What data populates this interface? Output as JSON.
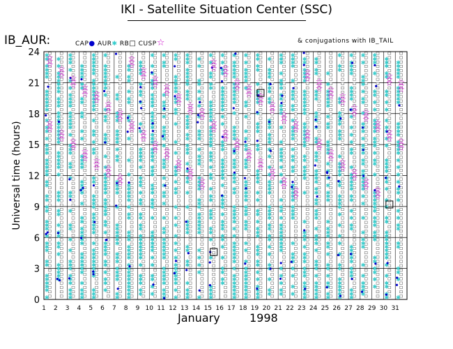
{
  "header": {
    "title": "IKI - Satellite Situation Center (SSC)",
    "satellite": "IB_AUR:",
    "conjugation_note": "& conjugations with IB_TAIL"
  },
  "legend": {
    "items": [
      {
        "label": "CAP",
        "symbol": "dot",
        "color": "#0000cc"
      },
      {
        "label": "AUR",
        "symbol": "asterisk",
        "color": "#33cccc"
      },
      {
        "label": "RB",
        "symbol": "square",
        "color": "#000000"
      },
      {
        "label": "CUSP",
        "symbol": "star",
        "color": "#cc00cc"
      }
    ]
  },
  "chart_data": {
    "type": "scatter",
    "title": "IKI - Satellite Situation Center (SSC)",
    "xlabel": "January 1998",
    "x_month": "January",
    "x_year": "1998",
    "ylabel": "Universal time (hours)",
    "xlim": [
      1,
      32
    ],
    "ylim": [
      0,
      24
    ],
    "x_ticks": [
      "1",
      "2",
      "3",
      "4",
      "5",
      "6",
      "7",
      "8",
      "9",
      "10",
      "11",
      "12",
      "13",
      "14",
      "15",
      "16",
      "17",
      "18",
      "19",
      "20",
      "21",
      "22",
      "23",
      "24",
      "25",
      "26",
      "27",
      "28",
      "29",
      "30",
      "31"
    ],
    "y_ticks": [
      0,
      3,
      6,
      9,
      12,
      15,
      18,
      21,
      24
    ],
    "grid": true,
    "series": [
      {
        "name": "CUSP",
        "color": "#cc00cc",
        "marker": "star",
        "points": [
          [
            2,
            23.1
          ],
          [
            2,
            16.8
          ],
          [
            3,
            22.0
          ],
          [
            3,
            15.9
          ],
          [
            4,
            21.1
          ],
          [
            4,
            15.0
          ],
          [
            5,
            20.2
          ],
          [
            5,
            14.0
          ],
          [
            6,
            19.6
          ],
          [
            6,
            13.1
          ],
          [
            7,
            18.6
          ],
          [
            7,
            12.4
          ],
          [
            8,
            17.8
          ],
          [
            8,
            11.6
          ],
          [
            9,
            23.0
          ],
          [
            9,
            16.8
          ],
          [
            10,
            21.9
          ],
          [
            10,
            15.9
          ],
          [
            11,
            21.1
          ],
          [
            11,
            14.8
          ],
          [
            12,
            20.3
          ],
          [
            12,
            14.1
          ],
          [
            13,
            19.4
          ],
          [
            13,
            13.0
          ],
          [
            14,
            18.5
          ],
          [
            14,
            12.2
          ],
          [
            15,
            18.0
          ],
          [
            15,
            11.2
          ],
          [
            16,
            16.8
          ],
          [
            16,
            22.7
          ],
          [
            17,
            22.1
          ],
          [
            17,
            15.9
          ],
          [
            18,
            20.8
          ],
          [
            18,
            15.0
          ],
          [
            19,
            20.2
          ],
          [
            19,
            14.0
          ],
          [
            20,
            19.4
          ],
          [
            20,
            13.1
          ],
          [
            21,
            18.6
          ],
          [
            21,
            12.2
          ],
          [
            22,
            17.6
          ],
          [
            22,
            11.3
          ],
          [
            23,
            16.8
          ],
          [
            23,
            10.3
          ],
          [
            24,
            21.7
          ],
          [
            24,
            15.9
          ],
          [
            25,
            20.8
          ],
          [
            25,
            15.0
          ],
          [
            26,
            20.0
          ],
          [
            26,
            14.0
          ],
          [
            27,
            19.4
          ],
          [
            27,
            13.0
          ],
          [
            28,
            18.3
          ],
          [
            28,
            12.1
          ],
          [
            29,
            17.8
          ],
          [
            29,
            11.2
          ],
          [
            30,
            16.8
          ],
          [
            30,
            10.3
          ],
          [
            31,
            15.9
          ],
          [
            31,
            21.3
          ],
          [
            32,
            20.7
          ],
          [
            32,
            15.0
          ]
        ]
      },
      {
        "name": "RB conjugation",
        "color": "#000000",
        "marker": "open-square-large",
        "points": [
          [
            20,
            20.0
          ],
          [
            16,
            4.6
          ],
          [
            31,
            9.2
          ]
        ]
      }
    ]
  }
}
